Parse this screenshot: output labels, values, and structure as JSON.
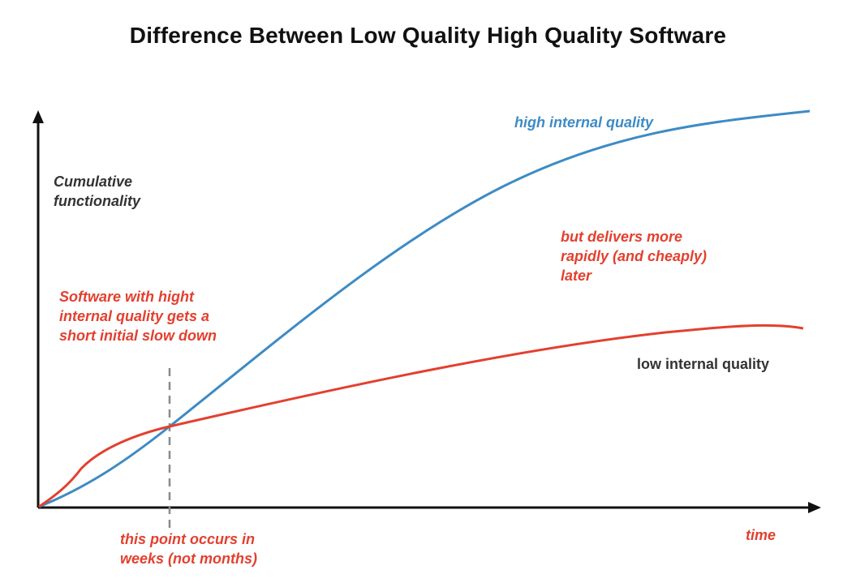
{
  "title": "Difference Between Low Quality High Quality Software",
  "labels": {
    "y_axis": [
      "Cumulative",
      "functionality"
    ],
    "x_axis": "time",
    "high_curve": "high internal quality",
    "low_curve": "low internal quality",
    "slowdown_note": [
      "Software with hight",
      "internal quality gets a",
      "short initial slow down"
    ],
    "delivers_note": [
      "but delivers more",
      "rapidly (and cheaply)",
      "later"
    ],
    "crossover_note": [
      "this point occurs in",
      "weeks (not months)"
    ]
  },
  "colors": {
    "high_quality": "#3d8bc4",
    "low_quality": "#e3402f",
    "annotation": "#e3402f",
    "axis": "#111111",
    "axis_text": "#333333",
    "crossover_marker": "#8a8a8a"
  }
}
